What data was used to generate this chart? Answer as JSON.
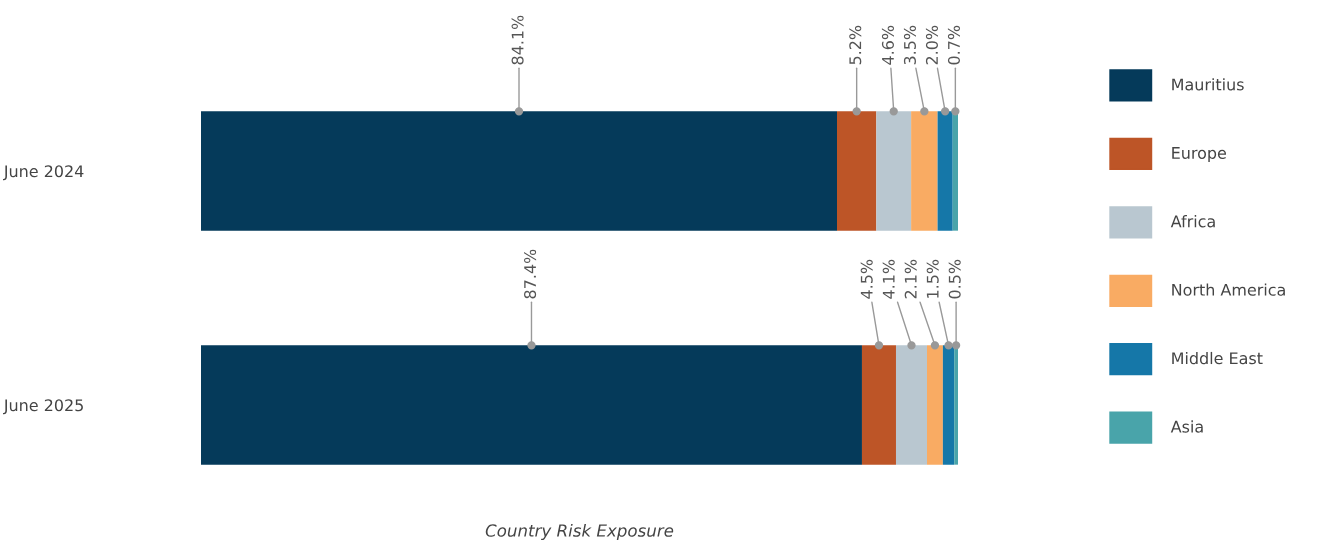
{
  "chart_data": {
    "type": "bar",
    "orientation": "horizontal",
    "stacked": true,
    "title": "Country Risk Exposure",
    "categories": [
      "June 2024",
      "June 2025"
    ],
    "series": [
      {
        "name": "Mauritius",
        "color": "#053a5a",
        "values": [
          84.1,
          87.4
        ],
        "value_labels": [
          "84.1%",
          "87.4%"
        ]
      },
      {
        "name": "Europe",
        "color": "#bd5527",
        "values": [
          5.2,
          4.5
        ],
        "value_labels": [
          "5.2%",
          "4.5%"
        ]
      },
      {
        "name": "Africa",
        "color": "#b9c7d0",
        "values": [
          4.6,
          4.1
        ],
        "value_labels": [
          "4.6%",
          "4.1%"
        ]
      },
      {
        "name": "North America",
        "color": "#f9ab63",
        "values": [
          3.5,
          2.1
        ],
        "value_labels": [
          "3.5%",
          "2.1%"
        ]
      },
      {
        "name": "Middle East",
        "color": "#1577a8",
        "values": [
          2.0,
          1.5
        ],
        "value_labels": [
          "2.0%",
          "1.5%"
        ]
      },
      {
        "name": "Asia",
        "color": "#49a4aa",
        "values": [
          0.7,
          0.5
        ],
        "value_labels": [
          "0.7%",
          "0.5%"
        ]
      }
    ],
    "legend": "right",
    "grid": false,
    "tick_labels": "y"
  }
}
